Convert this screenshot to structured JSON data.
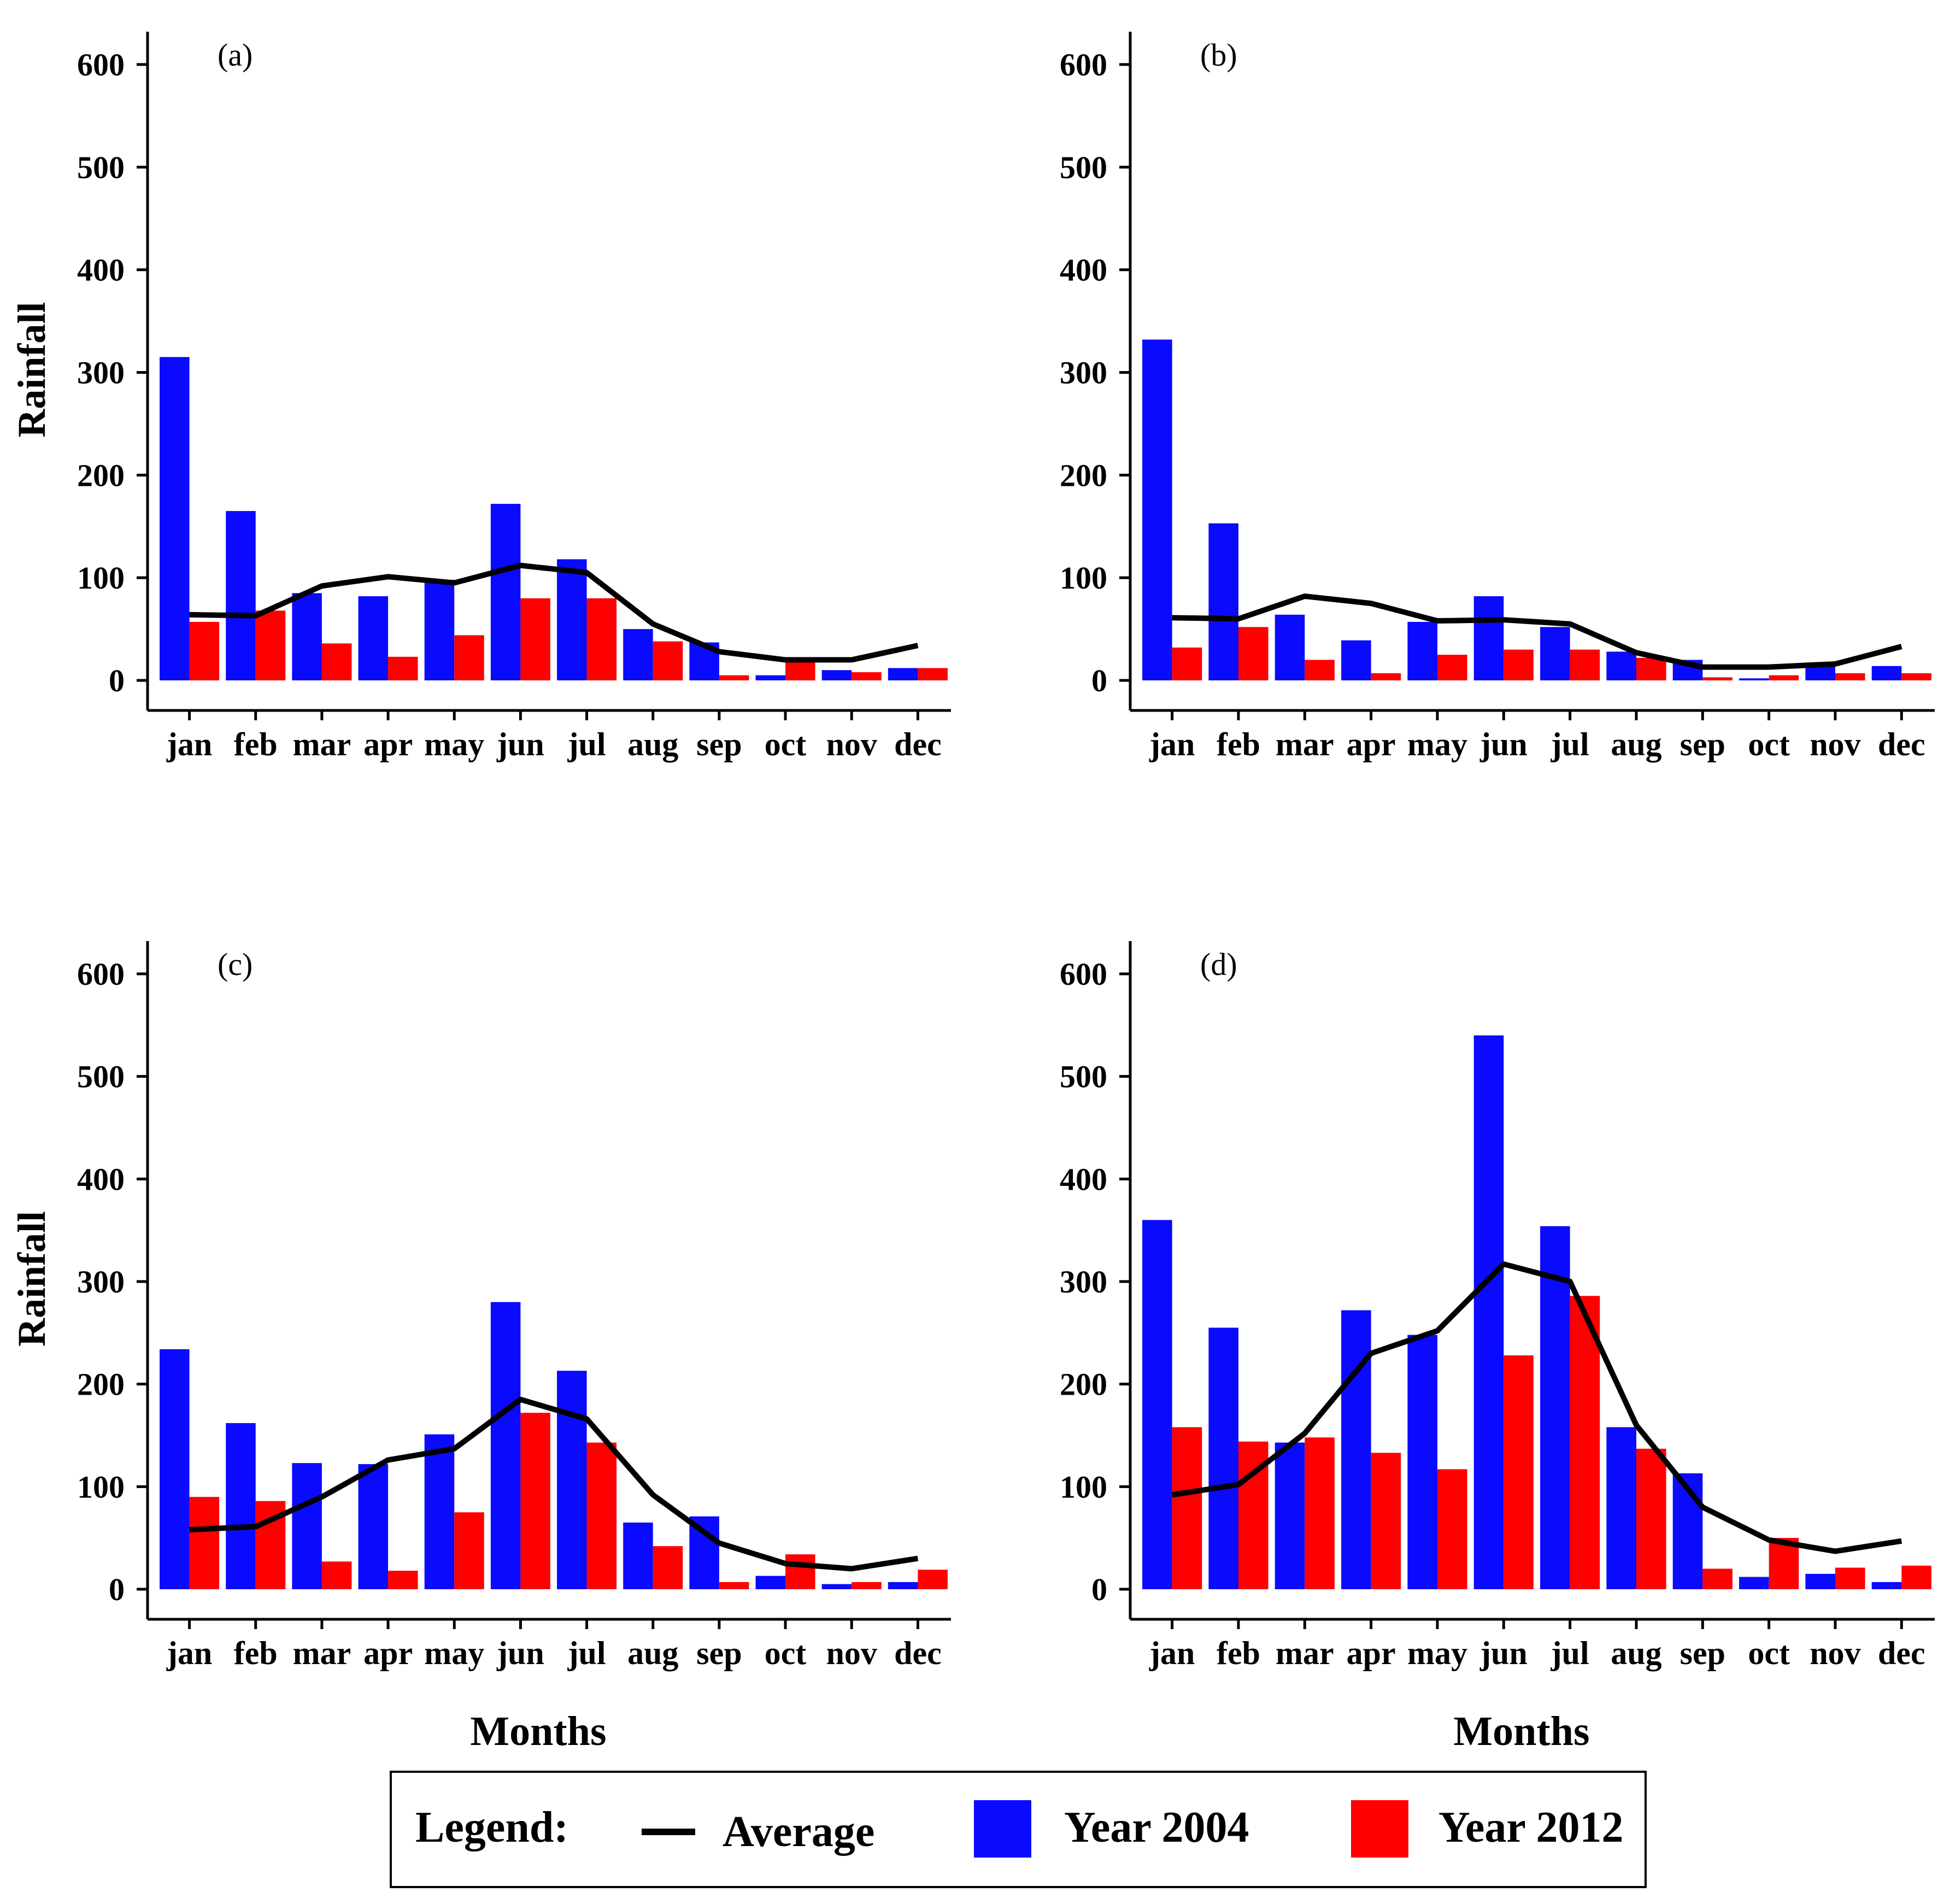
{
  "chart_data": [
    {
      "type": "bar",
      "panel_label": "(a)",
      "categories": [
        "jan",
        "feb",
        "mar",
        "apr",
        "may",
        "jun",
        "jul",
        "aug",
        "sep",
        "oct",
        "nov",
        "dec"
      ],
      "series": [
        {
          "name": "Year 2004",
          "color": "#0a0aff",
          "values": [
            315,
            165,
            85,
            82,
            98,
            172,
            118,
            50,
            37,
            5,
            10,
            12
          ]
        },
        {
          "name": "Year 2012",
          "color": "#ff0000",
          "values": [
            57,
            68,
            36,
            23,
            44,
            80,
            80,
            38,
            5,
            18,
            8,
            12
          ]
        }
      ],
      "line": {
        "name": "Average",
        "color": "#000000",
        "values": [
          64,
          63,
          92,
          101,
          95,
          112,
          105,
          55,
          28,
          20,
          20,
          34
        ]
      },
      "ylabel": "Rainfall",
      "xlabel": "",
      "ylim": [
        0,
        600
      ],
      "yticks": [
        0,
        100,
        200,
        300,
        400,
        500,
        600
      ]
    },
    {
      "type": "bar",
      "panel_label": "(b)",
      "categories": [
        "jan",
        "feb",
        "mar",
        "apr",
        "may",
        "jun",
        "jul",
        "aug",
        "sep",
        "oct",
        "nov",
        "dec"
      ],
      "series": [
        {
          "name": "Year 2004",
          "color": "#0a0aff",
          "values": [
            332,
            153,
            64,
            39,
            57,
            82,
            52,
            28,
            20,
            2,
            15,
            14
          ]
        },
        {
          "name": "Year 2012",
          "color": "#ff0000",
          "values": [
            32,
            52,
            20,
            7,
            25,
            30,
            30,
            22,
            3,
            5,
            7,
            7
          ]
        }
      ],
      "line": {
        "name": "Average",
        "color": "#000000",
        "values": [
          61,
          60,
          82,
          75,
          58,
          59,
          55,
          27,
          13,
          13,
          16,
          33
        ]
      },
      "ylabel": "",
      "xlabel": "",
      "ylim": [
        0,
        600
      ],
      "yticks": [
        0,
        100,
        200,
        300,
        400,
        500,
        600
      ]
    },
    {
      "type": "bar",
      "panel_label": "(c)",
      "categories": [
        "jan",
        "feb",
        "mar",
        "apr",
        "may",
        "jun",
        "jul",
        "aug",
        "sep",
        "oct",
        "nov",
        "dec"
      ],
      "series": [
        {
          "name": "Year 2004",
          "color": "#0a0aff",
          "values": [
            234,
            162,
            123,
            122,
            151,
            280,
            213,
            65,
            71,
            13,
            5,
            7
          ]
        },
        {
          "name": "Year 2012",
          "color": "#ff0000",
          "values": [
            90,
            86,
            27,
            18,
            75,
            172,
            143,
            42,
            7,
            34,
            7,
            19
          ]
        }
      ],
      "line": {
        "name": "Average",
        "color": "#000000",
        "values": [
          58,
          61,
          90,
          126,
          137,
          185,
          166,
          92,
          45,
          25,
          20,
          30
        ]
      },
      "ylabel": "Rainfall",
      "xlabel": "Months",
      "ylim": [
        0,
        600
      ],
      "yticks": [
        0,
        100,
        200,
        300,
        400,
        500,
        600
      ]
    },
    {
      "type": "bar",
      "panel_label": "(d)",
      "categories": [
        "jan",
        "feb",
        "mar",
        "apr",
        "may",
        "jun",
        "jul",
        "aug",
        "sep",
        "oct",
        "nov",
        "dec"
      ],
      "series": [
        {
          "name": "Year 2004",
          "color": "#0a0aff",
          "values": [
            360,
            255,
            143,
            272,
            248,
            540,
            354,
            158,
            113,
            12,
            15,
            7
          ]
        },
        {
          "name": "Year 2012",
          "color": "#ff0000",
          "values": [
            158,
            144,
            148,
            133,
            117,
            228,
            286,
            137,
            20,
            50,
            21,
            23
          ]
        }
      ],
      "line": {
        "name": "Average",
        "color": "#000000",
        "values": [
          92,
          102,
          152,
          230,
          252,
          317,
          300,
          160,
          80,
          48,
          37,
          47
        ]
      },
      "ylabel": "",
      "xlabel": "Months",
      "ylim": [
        0,
        600
      ],
      "yticks": [
        0,
        100,
        200,
        300,
        400,
        500,
        600
      ]
    }
  ],
  "legend": {
    "title": "Legend:",
    "average_label": "Average",
    "year2004_label": "Year 2004",
    "year2012_label": "Year 2012",
    "colors": {
      "average": "#000000",
      "year2004": "#0a0aff",
      "year2012": "#ff0000"
    }
  }
}
